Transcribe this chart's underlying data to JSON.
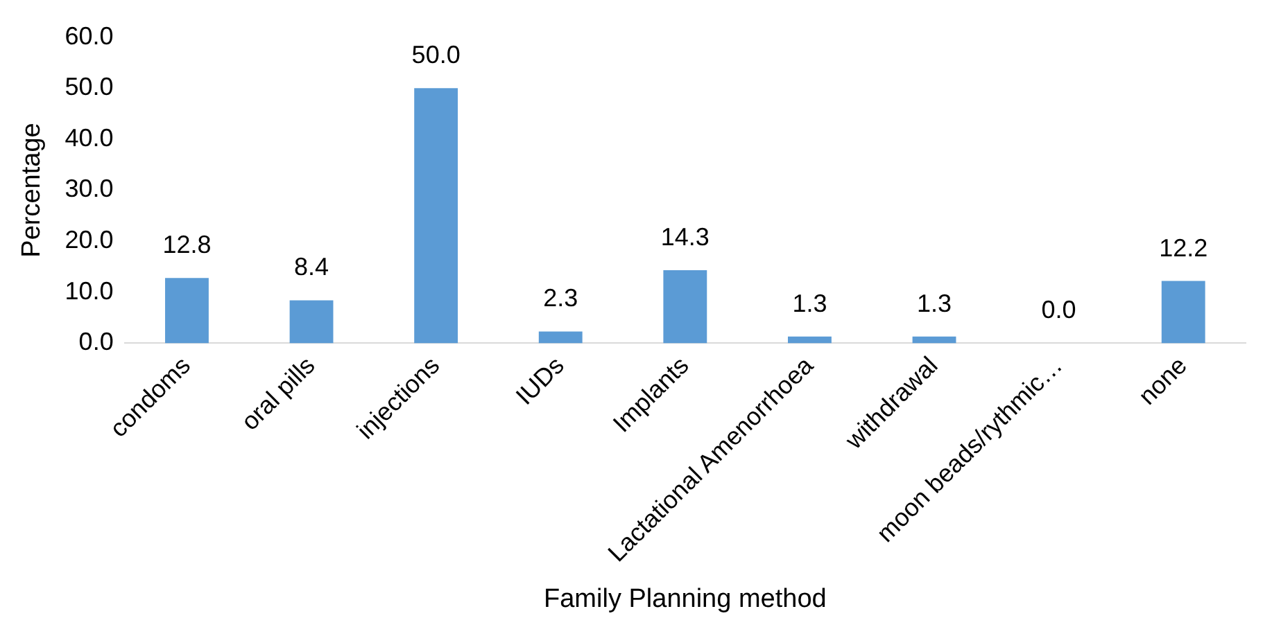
{
  "chart_data": {
    "type": "bar",
    "xlabel": "Family Planning method",
    "ylabel": "Percentage",
    "categories": [
      "condoms",
      "oral pills",
      "injections",
      "IUDs",
      "Implants",
      "Lactational Amenorrhoea",
      "withdrawal",
      "moon beads/rythmic…",
      "none"
    ],
    "values": [
      12.8,
      8.4,
      50.0,
      2.3,
      14.3,
      1.3,
      1.3,
      0.0,
      12.2
    ],
    "value_labels": [
      "12.8",
      "8.4",
      "50.0",
      "2.3",
      "14.3",
      "1.3",
      "1.3",
      "0.0",
      "12.2"
    ],
    "color": "#5b9bd5",
    "ylim": [
      0,
      60
    ],
    "yticks": [
      {
        "value": 0,
        "label": "0.0"
      },
      {
        "value": 10,
        "label": "10.0"
      },
      {
        "value": 20,
        "label": "20.0"
      },
      {
        "value": 30,
        "label": "30.0"
      },
      {
        "value": 40,
        "label": "40.0"
      },
      {
        "value": 50,
        "label": "50.0"
      },
      {
        "value": 60,
        "label": "60.0"
      }
    ],
    "grid": false,
    "legend": false
  }
}
